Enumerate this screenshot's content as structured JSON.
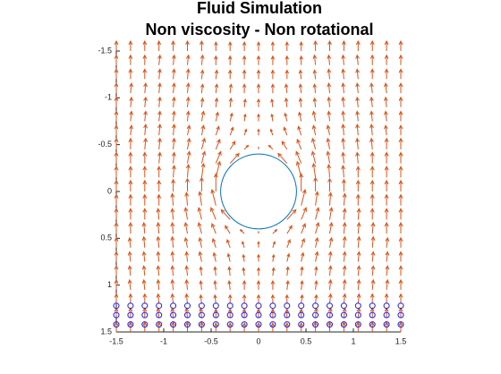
{
  "chart_data": {
    "type": "quiver",
    "title": [
      "Fluid Simulation",
      "Non viscosity - Non rotational"
    ],
    "xlim": [
      -1.5,
      1.5
    ],
    "ylim": [
      -1.5,
      1.5
    ],
    "y_reversed": true,
    "xticks": [
      -1.5,
      -1,
      -0.5,
      0,
      0.5,
      1,
      1.5
    ],
    "yticks": [
      -1.5,
      -1,
      -0.5,
      0,
      0.5,
      1,
      1.5
    ],
    "x": [
      -1.5,
      -1.35,
      -1.2,
      -1.05,
      -0.9,
      -0.75,
      -0.6,
      -0.45,
      -0.3,
      -0.15,
      0,
      0.15,
      0.3,
      0.45,
      0.6,
      0.75,
      0.9,
      1.05,
      1.2,
      1.35,
      1.5
    ],
    "y": [
      -1.5,
      -1.35,
      -1.2,
      -1.05,
      -0.9,
      -0.75,
      -0.6,
      -0.45,
      -0.3,
      -0.15,
      0,
      0.15,
      0.3,
      0.45,
      0.6,
      0.75,
      0.9,
      1.05,
      1.2,
      1.35,
      1.5
    ],
    "color": "#d95319",
    "u": [
      [
        0,
        0,
        0,
        0,
        0,
        0,
        0,
        0,
        0,
        0,
        0,
        0,
        0,
        0,
        0,
        0,
        0,
        0,
        0,
        0,
        0
      ],
      [
        0,
        0,
        0,
        0.1,
        0.1,
        0.1,
        0.1,
        0,
        0,
        0,
        0,
        0,
        0,
        0,
        -0.1,
        -0.1,
        -0.1,
        -0.1,
        0,
        0,
        0
      ],
      [
        0,
        0,
        0,
        0.1,
        0.1,
        0.1,
        0.1,
        0.1,
        0,
        0,
        0,
        0,
        0,
        -0.1,
        -0.1,
        -0.1,
        -0.1,
        -0.1,
        0,
        0,
        0
      ],
      [
        0,
        0.1,
        0.1,
        0.1,
        0.1,
        0.1,
        0.1,
        0.1,
        0.1,
        0,
        0,
        0,
        -0.1,
        -0.1,
        -0.1,
        -0.1,
        -0.1,
        -0.1,
        -0.1,
        -0.1,
        0
      ],
      [
        0,
        0.1,
        0.1,
        0.1,
        0.1,
        0.1,
        0.1,
        0.1,
        0.1,
        0.1,
        0,
        -0.1,
        -0.1,
        -0.1,
        -0.1,
        -0.1,
        -0.1,
        -0.1,
        -0.1,
        -0.1,
        0
      ],
      [
        0,
        0.1,
        0.1,
        0.1,
        0.1,
        0.1,
        0.2,
        0.2,
        0.2,
        0.1,
        0,
        -0.1,
        -0.2,
        -0.2,
        -0.2,
        -0.1,
        -0.1,
        -0.1,
        -0.1,
        -0.1,
        0
      ],
      [
        0,
        0.1,
        0.1,
        0.1,
        0.1,
        0.2,
        0.2,
        0.3,
        0.3,
        0.2,
        0,
        -0.2,
        -0.3,
        -0.3,
        -0.2,
        -0.2,
        -0.1,
        -0.1,
        -0.1,
        -0.1,
        0
      ],
      [
        0,
        0,
        0.1,
        0.1,
        0.1,
        0.2,
        0.3,
        0.4,
        0.5,
        0.4,
        0,
        -0.4,
        -0.5,
        -0.4,
        -0.3,
        -0.2,
        -0.1,
        -0.1,
        -0.1,
        0,
        0
      ],
      [
        0,
        0,
        0,
        0.1,
        0.1,
        0.2,
        0.3,
        0.5,
        0.9,
        null,
        null,
        null,
        -0.9,
        -0.5,
        -0.3,
        -0.2,
        -0.1,
        -0.1,
        0,
        0,
        0
      ],
      [
        0,
        0,
        0,
        0,
        0.1,
        0.1,
        0.2,
        0.4,
        null,
        null,
        null,
        null,
        null,
        -0.4,
        -0.2,
        -0.1,
        -0.1,
        0,
        0,
        0,
        0
      ],
      [
        0,
        0,
        0,
        0,
        0,
        0,
        0,
        0,
        null,
        null,
        null,
        null,
        null,
        0,
        0,
        0,
        0,
        0,
        0,
        0,
        0
      ],
      [
        0,
        0,
        0,
        0,
        -0.1,
        -0.1,
        -0.2,
        -0.4,
        null,
        null,
        null,
        null,
        null,
        0.4,
        0.2,
        0.1,
        0.1,
        0,
        0,
        0,
        0
      ],
      [
        0,
        0,
        0,
        -0.1,
        -0.1,
        -0.2,
        -0.3,
        -0.5,
        -0.9,
        null,
        null,
        null,
        0.9,
        0.5,
        0.3,
        0.2,
        0.1,
        0.1,
        0,
        0,
        0
      ],
      [
        0,
        0,
        -0.1,
        -0.1,
        -0.1,
        -0.2,
        -0.3,
        -0.4,
        -0.5,
        -0.4,
        0,
        0.4,
        0.5,
        0.4,
        0.3,
        0.2,
        0.1,
        0.1,
        0.1,
        0,
        0
      ],
      [
        0,
        -0.1,
        -0.1,
        -0.1,
        -0.1,
        -0.2,
        -0.2,
        -0.3,
        -0.3,
        -0.2,
        0,
        0.2,
        0.3,
        0.3,
        0.2,
        0.2,
        0.1,
        0.1,
        0.1,
        0.1,
        0
      ],
      [
        0,
        -0.1,
        -0.1,
        -0.1,
        -0.1,
        -0.1,
        -0.2,
        -0.2,
        -0.2,
        -0.1,
        0,
        0.1,
        0.2,
        0.2,
        0.2,
        0.1,
        0.1,
        0.1,
        0.1,
        0.1,
        0
      ],
      [
        0,
        -0.1,
        -0.1,
        -0.1,
        -0.1,
        -0.1,
        -0.1,
        -0.1,
        -0.1,
        -0.1,
        0,
        0.1,
        0.1,
        0.1,
        0.1,
        0.1,
        0.1,
        0.1,
        0.1,
        0.1,
        0
      ],
      [
        0,
        -0.1,
        -0.1,
        -0.1,
        -0.1,
        -0.1,
        -0.1,
        -0.1,
        -0.1,
        0,
        0,
        0,
        0.1,
        0.1,
        0.1,
        0.1,
        0.1,
        0.1,
        0.1,
        0.1,
        0
      ],
      [
        0,
        0,
        0,
        -0.1,
        -0.1,
        -0.1,
        -0.1,
        -0.1,
        0,
        0,
        0,
        0,
        0,
        0.1,
        0.1,
        0.1,
        0.1,
        0.1,
        0,
        0,
        0
      ],
      [
        0,
        0,
        0,
        -0.1,
        -0.1,
        -0.1,
        -0.1,
        0,
        0,
        0,
        0,
        0,
        0,
        0,
        0.1,
        0.1,
        0.1,
        0.1,
        0,
        0,
        0
      ],
      [
        0,
        0,
        0,
        0,
        0,
        0,
        0,
        0,
        0,
        0,
        0,
        0,
        0,
        0,
        0,
        0,
        0,
        0,
        0,
        0,
        0
      ]
    ],
    "v": [
      [
        -1,
        -1,
        -1,
        -1,
        -1,
        -1,
        -1,
        -0.9,
        -0.9,
        -0.9,
        -0.9,
        -0.9,
        -0.9,
        -0.9,
        -1,
        -1,
        -1,
        -1,
        -1,
        -1,
        -1
      ],
      [
        -1,
        -1,
        -1,
        -1,
        -1,
        -1,
        -1,
        -0.9,
        -0.9,
        -0.9,
        -0.9,
        -0.9,
        -0.9,
        -0.9,
        -1,
        -1,
        -1,
        -1,
        -1,
        -1,
        -1
      ],
      [
        -1,
        -1,
        -1,
        -1,
        -1,
        -1,
        -0.9,
        -0.9,
        -0.9,
        -0.9,
        -0.9,
        -0.9,
        -0.9,
        -0.9,
        -0.9,
        -1,
        -1,
        -1,
        -1,
        -1,
        -1
      ],
      [
        -1,
        -1,
        -1,
        -1,
        -1,
        -1,
        -0.9,
        -0.9,
        -0.9,
        -0.9,
        -0.9,
        -0.9,
        -0.9,
        -0.9,
        -0.9,
        -1,
        -1,
        -1,
        -1,
        -1,
        -1
      ],
      [
        -1,
        -1,
        -1,
        -1,
        -1,
        -1,
        -0.9,
        -0.9,
        -0.9,
        -0.8,
        -0.8,
        -0.8,
        -0.9,
        -0.9,
        -0.9,
        -1,
        -1,
        -1,
        -1,
        -1,
        -1
      ],
      [
        -1,
        -1,
        -1,
        -1,
        -1,
        -1,
        -1,
        -0.9,
        -0.8,
        -0.7,
        -0.7,
        -0.7,
        -0.8,
        -0.9,
        -1,
        -1,
        -1,
        -1,
        -1,
        -1,
        -1
      ],
      [
        -1,
        -1,
        -1.1,
        -1.1,
        -1.1,
        -1,
        -1,
        -0.9,
        -0.8,
        -0.6,
        -0.6,
        -0.6,
        -0.8,
        -0.9,
        -1,
        -1,
        -1.1,
        -1.1,
        -1.1,
        -1,
        -1
      ],
      [
        -1.1,
        -1.1,
        -1.1,
        -1.1,
        -1.1,
        -1.1,
        -1.1,
        -1,
        -0.8,
        -0.4,
        -0.2,
        -0.4,
        -0.8,
        -1,
        -1.1,
        -1.1,
        -1.1,
        -1.1,
        -1.1,
        -1.1,
        -1.1
      ],
      [
        -1.1,
        -1.1,
        -1.1,
        -1.1,
        -1.1,
        -1.2,
        -1.2,
        -1.2,
        -1,
        null,
        null,
        null,
        -1,
        -1.2,
        -1.2,
        -1.2,
        -1.1,
        -1.1,
        -1.1,
        -1.1,
        -1.1
      ],
      [
        -1.1,
        -1.1,
        -1.1,
        -1.1,
        -1.2,
        -1.3,
        -1.4,
        -1.6,
        null,
        null,
        null,
        null,
        null,
        -1.6,
        -1.4,
        -1.3,
        -1.2,
        -1.1,
        -1.1,
        -1.1,
        -1.1
      ],
      [
        -1.1,
        -1.1,
        -1.1,
        -1.1,
        -1.2,
        -1.3,
        -1.4,
        -1.8,
        null,
        null,
        null,
        null,
        null,
        -1.8,
        -1.4,
        -1.3,
        -1.2,
        -1.1,
        -1.1,
        -1.1,
        -1.1
      ],
      [
        -1.1,
        -1.1,
        -1.1,
        -1.1,
        -1.2,
        -1.3,
        -1.4,
        -1.6,
        null,
        null,
        null,
        null,
        null,
        -1.6,
        -1.4,
        -1.3,
        -1.2,
        -1.1,
        -1.1,
        -1.1,
        -1.1
      ],
      [
        -1.1,
        -1.1,
        -1.1,
        -1.1,
        -1.1,
        -1.2,
        -1.2,
        -1.2,
        -1,
        null,
        null,
        null,
        -1,
        -1.2,
        -1.2,
        -1.2,
        -1.1,
        -1.1,
        -1.1,
        -1.1,
        -1.1
      ],
      [
        -1.1,
        -1.1,
        -1.1,
        -1.1,
        -1.1,
        -1.1,
        -1.1,
        -1,
        -0.8,
        -0.4,
        -0.2,
        -0.4,
        -0.8,
        -1,
        -1.1,
        -1.1,
        -1.1,
        -1.1,
        -1.1,
        -1.1,
        -1.1
      ],
      [
        -1,
        -1,
        -1.1,
        -1.1,
        -1.1,
        -1,
        -1,
        -0.9,
        -0.8,
        -0.6,
        -0.6,
        -0.6,
        -0.8,
        -0.9,
        -1,
        -1,
        -1.1,
        -1.1,
        -1.1,
        -1,
        -1
      ],
      [
        -1,
        -1,
        -1,
        -1,
        -1,
        -1,
        -1,
        -0.9,
        -0.8,
        -0.7,
        -0.7,
        -0.7,
        -0.8,
        -0.9,
        -1,
        -1,
        -1,
        -1,
        -1,
        -1,
        -1
      ],
      [
        -1,
        -1,
        -1,
        -1,
        -1,
        -1,
        -0.9,
        -0.9,
        -0.9,
        -0.8,
        -0.8,
        -0.8,
        -0.9,
        -0.9,
        -0.9,
        -1,
        -1,
        -1,
        -1,
        -1,
        -1
      ],
      [
        -1,
        -1,
        -1,
        -1,
        -1,
        -1,
        -0.9,
        -0.9,
        -0.9,
        -0.9,
        -0.9,
        -0.9,
        -0.9,
        -0.9,
        -0.9,
        -1,
        -1,
        -1,
        -1,
        -1,
        -1
      ],
      [
        -1,
        -1,
        -1,
        -1,
        -1,
        -1,
        -0.9,
        -0.9,
        -0.9,
        -0.9,
        -0.9,
        -0.9,
        -0.9,
        -0.9,
        -0.9,
        -1,
        -1,
        -1,
        -1,
        -1,
        -1
      ],
      [
        -1,
        -1,
        -1,
        -1,
        -1,
        -1,
        -1,
        -0.9,
        -0.9,
        -0.9,
        -0.9,
        -0.9,
        -0.9,
        -0.9,
        -1,
        -1,
        -1,
        -1,
        -1,
        -1,
        -1
      ],
      [
        -1,
        -1,
        -1,
        -1,
        -1,
        -1,
        -1,
        -0.9,
        -0.9,
        -0.9,
        -0.9,
        -0.9,
        -0.9,
        -0.9,
        -1,
        -1,
        -1,
        -1,
        -1,
        -1,
        -1
      ]
    ],
    "cylinder": {
      "center": [
        0,
        0
      ],
      "radius": 0.4,
      "color": "#0072bd"
    },
    "particle_y": [
      1.22,
      1.32,
      1.42
    ],
    "particle_color": "#2020e0"
  }
}
